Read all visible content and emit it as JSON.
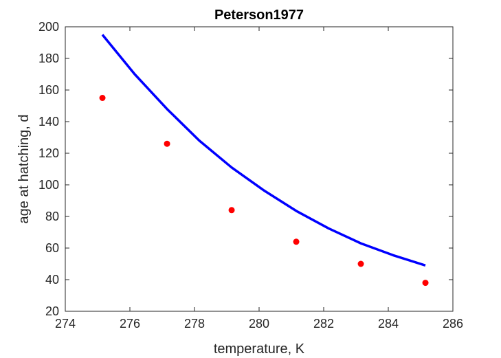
{
  "chart_data": {
    "type": "scatter",
    "title": "Peterson1977",
    "xlabel": "temperature, K",
    "ylabel": "age at hatching, d",
    "xlim": [
      274,
      286
    ],
    "ylim": [
      20,
      200
    ],
    "xticks": [
      274,
      276,
      278,
      280,
      282,
      284,
      286
    ],
    "yticks": [
      20,
      40,
      60,
      80,
      100,
      120,
      140,
      160,
      180,
      200
    ],
    "grid": false,
    "legend": "none",
    "series": [
      {
        "kind": "scatter",
        "color": "#ff0000",
        "x": [
          275.15,
          277.15,
          279.15,
          281.15,
          283.15,
          285.15
        ],
        "y": [
          155,
          126,
          84,
          64,
          50,
          38
        ]
      },
      {
        "kind": "line",
        "color": "#0000ff",
        "x": [
          275.15,
          276.15,
          277.15,
          278.15,
          279.15,
          280.15,
          281.15,
          282.15,
          283.15,
          284.15,
          285.15
        ],
        "y": [
          195,
          170,
          148,
          128,
          111,
          96.5,
          83.5,
          72.5,
          63,
          55.5,
          49
        ]
      }
    ]
  }
}
